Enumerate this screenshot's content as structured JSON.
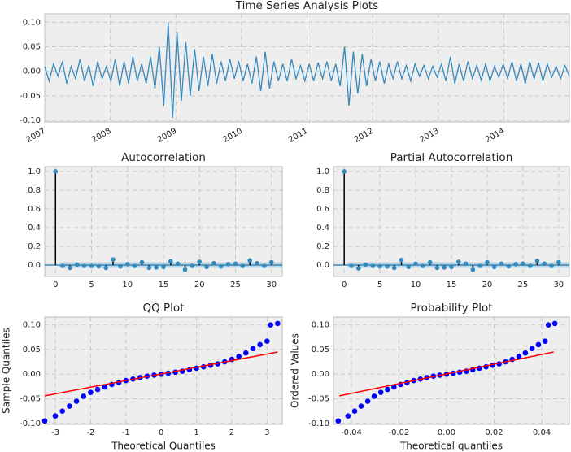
{
  "chart_data": [
    {
      "type": "line",
      "title": "Time Series Analysis Plots",
      "color": "#348abd",
      "xlim": [
        2007,
        2015
      ],
      "xticks": [
        2007,
        2008,
        2009,
        2010,
        2011,
        2012,
        2013,
        2014
      ],
      "ylim": [
        -0.103,
        0.117
      ],
      "yticks": [
        {
          "value": -0.1,
          "label": "-0.10"
        },
        {
          "value": -0.05,
          "label": "-0.05"
        },
        {
          "value": 0,
          "label": "0.00"
        },
        {
          "value": 0.05,
          "label": "0.05"
        },
        {
          "value": 0.1,
          "label": "0.10"
        }
      ],
      "grid": true,
      "values": [
        0.01,
        -0.02,
        0.015,
        -0.01,
        0.02,
        -0.025,
        0.01,
        -0.015,
        0.025,
        -0.02,
        0.012,
        -0.03,
        0.02,
        -0.015,
        0.01,
        -0.02,
        0.025,
        -0.03,
        0.02,
        -0.025,
        0.03,
        -0.02,
        0.015,
        -0.025,
        0.03,
        -0.035,
        0.05,
        -0.07,
        0.1,
        -0.095,
        0.08,
        -0.06,
        0.06,
        -0.05,
        0.045,
        -0.04,
        0.03,
        -0.03,
        0.035,
        -0.025,
        0.02,
        -0.02,
        0.025,
        -0.015,
        0.02,
        -0.02,
        0.015,
        -0.025,
        0.03,
        -0.04,
        0.04,
        -0.035,
        0.02,
        -0.02,
        0.015,
        -0.02,
        0.025,
        -0.015,
        0.012,
        -0.02,
        0.015,
        -0.02,
        0.018,
        -0.015,
        0.02,
        -0.02,
        0.015,
        -0.03,
        0.05,
        -0.07,
        0.04,
        -0.045,
        0.035,
        -0.03,
        0.025,
        -0.02,
        0.02,
        -0.025,
        0.015,
        -0.015,
        0.02,
        -0.015,
        0.012,
        -0.02,
        0.015,
        -0.01,
        0.012,
        -0.015,
        0.01,
        -0.012,
        0.015,
        -0.02,
        0.03,
        -0.025,
        0.015,
        -0.02,
        0.02,
        -0.015,
        0.012,
        -0.018,
        0.015,
        -0.02,
        0.01,
        -0.012,
        0.015,
        -0.015,
        0.02,
        -0.02,
        0.015,
        -0.025,
        0.02,
        -0.015,
        0.018,
        -0.02,
        0.015,
        -0.012,
        0.01,
        -0.015,
        0.012,
        -0.01
      ]
    },
    {
      "type": "stem",
      "title": "Autocorrelation",
      "color": "#348abd",
      "confidence": 0.03,
      "xlim": [
        -1.5,
        31.5
      ],
      "xticks": [
        0,
        5,
        10,
        15,
        20,
        25,
        30
      ],
      "ylim": [
        -0.122,
        1.052
      ],
      "yticks": [
        {
          "value": 0,
          "label": "0.0"
        },
        {
          "value": 0.2,
          "label": "0.2"
        },
        {
          "value": 0.4,
          "label": "0.4"
        },
        {
          "value": 0.6,
          "label": "0.6"
        },
        {
          "value": 0.8,
          "label": "0.8"
        },
        {
          "value": 1,
          "label": "1.0"
        }
      ],
      "grid": true,
      "x": [
        0,
        1,
        2,
        3,
        4,
        5,
        6,
        7,
        8,
        9,
        10,
        11,
        12,
        13,
        14,
        15,
        16,
        17,
        18,
        19,
        20,
        21,
        22,
        23,
        24,
        25,
        26,
        27,
        28,
        29,
        30
      ],
      "values": [
        1,
        -0.01,
        -0.03,
        0.005,
        -0.01,
        -0.01,
        -0.015,
        -0.03,
        0.06,
        -0.015,
        0.01,
        -0.01,
        0.03,
        -0.03,
        -0.025,
        -0.02,
        0.04,
        0.015,
        -0.05,
        -0.01,
        0.035,
        -0.02,
        0.02,
        -0.015,
        0.01,
        0.015,
        -0.01,
        0.05,
        0.02,
        -0.01,
        0.03
      ]
    },
    {
      "type": "stem",
      "title": "Partial Autocorrelation",
      "color": "#348abd",
      "confidence": 0.03,
      "xlim": [
        -1.5,
        31.5
      ],
      "xticks": [
        0,
        5,
        10,
        15,
        20,
        25,
        30
      ],
      "ylim": [
        -0.122,
        1.052
      ],
      "yticks": [
        {
          "value": 0,
          "label": "0.0"
        },
        {
          "value": 0.2,
          "label": "0.2"
        },
        {
          "value": 0.4,
          "label": "0.4"
        },
        {
          "value": 0.6,
          "label": "0.6"
        },
        {
          "value": 0.8,
          "label": "0.8"
        },
        {
          "value": 1,
          "label": "1.0"
        }
      ],
      "grid": true,
      "x": [
        0,
        1,
        2,
        3,
        4,
        5,
        6,
        7,
        8,
        9,
        10,
        11,
        12,
        13,
        14,
        15,
        16,
        17,
        18,
        19,
        20,
        21,
        22,
        23,
        24,
        25,
        26,
        27,
        28,
        29,
        30
      ],
      "values": [
        1,
        -0.01,
        -0.035,
        0.005,
        -0.01,
        -0.015,
        -0.015,
        -0.03,
        0.055,
        -0.02,
        0.015,
        -0.01,
        0.03,
        -0.03,
        -0.025,
        -0.02,
        0.035,
        0.015,
        -0.05,
        -0.01,
        0.03,
        -0.02,
        0.015,
        -0.015,
        0.01,
        0.015,
        -0.01,
        0.045,
        0.015,
        -0.01,
        0.03
      ]
    },
    {
      "type": "scatter",
      "title": "QQ Plot",
      "xlabel": "Theoretical Quantiles",
      "ylabel": "Sample Quantiles",
      "color": "#0000ff",
      "line_color": "#ff0000",
      "xlim": [
        -3.3,
        3.43
      ],
      "xticks": [
        -3,
        -2,
        -1,
        0,
        1,
        2,
        3
      ],
      "ylim": [
        -0.102,
        0.116
      ],
      "yticks": [
        {
          "value": -0.1,
          "label": "-0.10"
        },
        {
          "value": -0.05,
          "label": "-0.05"
        },
        {
          "value": 0,
          "label": "0.00"
        },
        {
          "value": 0.05,
          "label": "0.05"
        },
        {
          "value": 0.1,
          "label": "0.10"
        }
      ],
      "grid": true,
      "x": [
        -3.3,
        -3.0,
        -2.8,
        -2.6,
        -2.4,
        -2.2,
        -2.0,
        -1.8,
        -1.6,
        -1.4,
        -1.2,
        -1.0,
        -0.8,
        -0.6,
        -0.4,
        -0.2,
        0,
        0.2,
        0.4,
        0.6,
        0.8,
        1.0,
        1.2,
        1.4,
        1.6,
        1.8,
        2.0,
        2.2,
        2.4,
        2.6,
        2.8,
        3.0,
        3.1,
        3.3
      ],
      "values": [
        -0.095,
        -0.085,
        -0.075,
        -0.065,
        -0.055,
        -0.045,
        -0.037,
        -0.031,
        -0.026,
        -0.021,
        -0.017,
        -0.013,
        -0.01,
        -0.007,
        -0.004,
        -0.002,
        0,
        0.002,
        0.004,
        0.006,
        0.009,
        0.012,
        0.015,
        0.018,
        0.021,
        0.025,
        0.03,
        0.036,
        0.043,
        0.052,
        0.06,
        0.067,
        0.1,
        0.103
      ],
      "fit_line": {
        "x": [
          -3.3,
          3.3
        ],
        "values": [
          -0.044,
          0.045
        ]
      }
    },
    {
      "type": "scatter",
      "title": "Probability Plot",
      "xlabel": "Theoretical quantiles",
      "ylabel": "Ordered Values",
      "color": "#0000ff",
      "line_color": "#ff0000",
      "xlim": [
        -0.0475,
        0.0516
      ],
      "xticks": [
        {
          "value": -0.04,
          "label": "-0.04"
        },
        {
          "value": -0.02,
          "label": "-0.02"
        },
        {
          "value": 0,
          "label": "0.00"
        },
        {
          "value": 0.02,
          "label": "0.02"
        },
        {
          "value": 0.04,
          "label": "0.04"
        }
      ],
      "ylim": [
        -0.102,
        0.116
      ],
      "yticks": [
        {
          "value": -0.1,
          "label": "-0.10"
        },
        {
          "value": -0.05,
          "label": "-0.05"
        },
        {
          "value": 0,
          "label": "0.00"
        },
        {
          "value": 0.05,
          "label": "0.05"
        },
        {
          "value": 0.1,
          "label": "0.10"
        }
      ],
      "grid": true,
      "x": [
        -0.0455,
        -0.0414,
        -0.0386,
        -0.0359,
        -0.0331,
        -0.0304,
        -0.0276,
        -0.0248,
        -0.0221,
        -0.0193,
        -0.0166,
        -0.0138,
        -0.011,
        -0.0083,
        -0.0055,
        -0.0028,
        0,
        0.0028,
        0.0055,
        0.0083,
        0.011,
        0.0138,
        0.0166,
        0.0193,
        0.0221,
        0.0248,
        0.0276,
        0.0304,
        0.0331,
        0.0359,
        0.0386,
        0.0414,
        0.0428,
        0.0455
      ],
      "values": [
        -0.095,
        -0.085,
        -0.075,
        -0.065,
        -0.055,
        -0.045,
        -0.037,
        -0.031,
        -0.026,
        -0.021,
        -0.017,
        -0.013,
        -0.01,
        -0.007,
        -0.004,
        -0.002,
        0,
        0.002,
        0.004,
        0.006,
        0.009,
        0.012,
        0.015,
        0.018,
        0.021,
        0.025,
        0.03,
        0.036,
        0.043,
        0.052,
        0.06,
        0.067,
        0.1,
        0.103
      ],
      "fit_line": {
        "x": [
          -0.045,
          0.045
        ],
        "values": [
          -0.044,
          0.045
        ]
      }
    }
  ]
}
